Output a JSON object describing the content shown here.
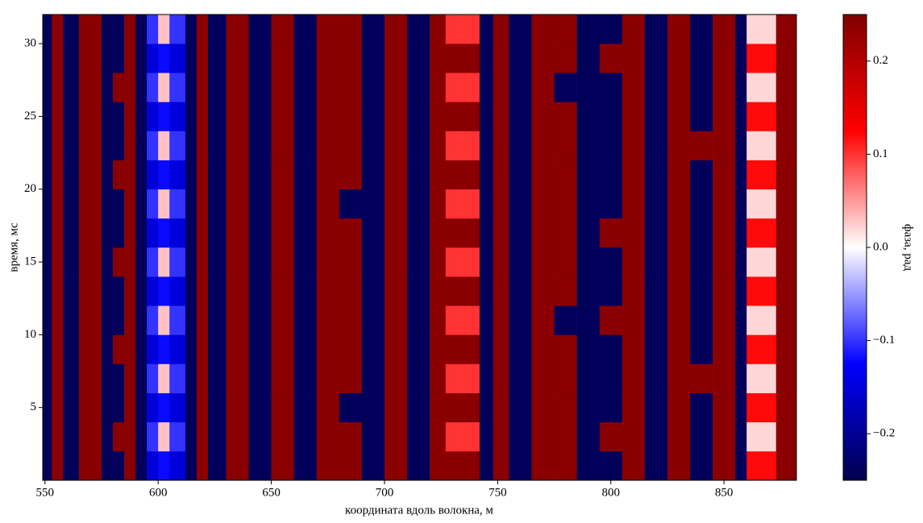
{
  "chart_data": {
    "type": "heatmap",
    "xlabel": "координата вдоль волокна, м",
    "ylabel": "время, мс",
    "colorbar_label": "фаза, рад",
    "colormap": [
      "#00004d",
      "#0000ff",
      "#ffffff",
      "#ff0000",
      "#800000"
    ],
    "zlim": [
      -0.25,
      0.25
    ],
    "zticks": [
      {
        "value": -0.2,
        "label": "−0.2"
      },
      {
        "value": -0.1,
        "label": "−0.1"
      },
      {
        "value": 0,
        "label": "0.0"
      },
      0.1,
      0.2
    ],
    "xlim": [
      549,
      882
    ],
    "xticks": [
      550,
      600,
      650,
      700,
      750,
      800,
      850
    ],
    "ylim": [
      0,
      32
    ],
    "yticks": [
      5,
      10,
      15,
      20,
      25,
      30
    ],
    "xbins": [
      549,
      553,
      558,
      565,
      570,
      575,
      580,
      585,
      590,
      595,
      600,
      605,
      612,
      617,
      622,
      630,
      640,
      650,
      660,
      670,
      680,
      690,
      700,
      710,
      720,
      727,
      733,
      742,
      748,
      755,
      765,
      775,
      785,
      795,
      805,
      815,
      825,
      835,
      845,
      855,
      860,
      866,
      873,
      882
    ],
    "ybins": [
      0,
      2,
      4,
      6,
      8,
      10,
      12,
      14,
      16,
      18,
      20,
      22,
      24,
      26,
      28,
      30,
      32
    ],
    "z": [
      [
        -0.24,
        0.24,
        -0.24,
        0.24,
        0.24,
        -0.24,
        -0.24,
        0.24,
        -0.24,
        -0.15,
        -0.12,
        -0.15,
        -0.24,
        0.24,
        -0.24,
        0.24,
        -0.24,
        0.24,
        -0.24,
        0.24,
        0.24,
        -0.24,
        0.24,
        -0.24,
        0.24,
        0.24,
        0.24,
        -0.24,
        0.24,
        -0.24,
        0.24,
        0.24,
        -0.24,
        -0.24,
        0.24,
        -0.24,
        0.24,
        -0.24,
        0.24,
        -0.24,
        0.12,
        0.12,
        0.24
      ],
      [
        -0.24,
        0.24,
        -0.24,
        0.24,
        0.24,
        -0.24,
        0.24,
        0.24,
        -0.24,
        -0.1,
        0.03,
        -0.1,
        -0.24,
        0.24,
        -0.24,
        0.24,
        -0.24,
        0.24,
        -0.24,
        0.24,
        0.24,
        -0.24,
        0.24,
        -0.24,
        0.24,
        0.1,
        0.1,
        -0.24,
        0.24,
        -0.24,
        0.24,
        0.24,
        -0.24,
        0.24,
        0.24,
        -0.24,
        0.24,
        -0.24,
        0.24,
        -0.24,
        0.02,
        0.02,
        0.24
      ],
      [
        -0.24,
        0.24,
        -0.24,
        0.24,
        0.24,
        -0.24,
        -0.24,
        0.24,
        -0.24,
        -0.15,
        -0.12,
        -0.15,
        -0.24,
        0.24,
        -0.24,
        0.24,
        -0.24,
        0.24,
        -0.24,
        0.24,
        -0.24,
        -0.24,
        0.24,
        -0.24,
        0.24,
        0.24,
        0.24,
        -0.24,
        0.24,
        -0.24,
        0.24,
        0.24,
        -0.24,
        -0.24,
        0.24,
        -0.24,
        0.24,
        -0.24,
        0.24,
        -0.24,
        0.12,
        0.12,
        0.24
      ],
      [
        -0.24,
        0.24,
        -0.24,
        0.24,
        0.24,
        -0.24,
        -0.24,
        0.24,
        -0.24,
        -0.1,
        0.03,
        -0.1,
        -0.24,
        0.24,
        -0.24,
        0.24,
        -0.24,
        0.24,
        -0.24,
        0.24,
        0.24,
        -0.24,
        0.24,
        -0.24,
        0.24,
        0.1,
        0.1,
        -0.24,
        0.24,
        -0.24,
        0.24,
        0.24,
        -0.24,
        -0.24,
        0.24,
        -0.24,
        0.24,
        0.24,
        0.24,
        -0.24,
        0.02,
        0.02,
        0.24
      ],
      [
        -0.24,
        0.24,
        -0.24,
        0.24,
        0.24,
        -0.24,
        0.24,
        0.24,
        -0.24,
        -0.15,
        -0.12,
        -0.15,
        -0.24,
        0.24,
        -0.24,
        0.24,
        -0.24,
        0.24,
        -0.24,
        0.24,
        0.24,
        -0.24,
        0.24,
        -0.24,
        0.24,
        0.24,
        0.24,
        -0.24,
        0.24,
        -0.24,
        0.24,
        0.24,
        -0.24,
        -0.24,
        0.24,
        -0.24,
        0.24,
        -0.24,
        0.24,
        -0.24,
        0.12,
        0.12,
        0.24
      ],
      [
        -0.24,
        0.24,
        -0.24,
        0.24,
        0.24,
        -0.24,
        -0.24,
        0.24,
        -0.24,
        -0.1,
        0.03,
        -0.1,
        -0.24,
        0.24,
        -0.24,
        0.24,
        -0.24,
        0.24,
        -0.24,
        0.24,
        0.24,
        -0.24,
        0.24,
        -0.24,
        0.24,
        0.1,
        0.1,
        -0.24,
        0.24,
        -0.24,
        0.24,
        -0.24,
        -0.24,
        0.24,
        0.24,
        -0.24,
        0.24,
        -0.24,
        0.24,
        -0.24,
        0.02,
        0.02,
        0.24
      ],
      [
        -0.24,
        0.24,
        -0.24,
        0.24,
        0.24,
        -0.24,
        -0.24,
        0.24,
        -0.24,
        -0.15,
        -0.12,
        -0.15,
        -0.24,
        0.24,
        -0.24,
        0.24,
        -0.24,
        0.24,
        -0.24,
        0.24,
        0.24,
        -0.24,
        0.24,
        -0.24,
        0.24,
        0.24,
        0.24,
        -0.24,
        0.24,
        -0.24,
        0.24,
        0.24,
        -0.24,
        -0.24,
        0.24,
        -0.24,
        0.24,
        -0.24,
        0.24,
        -0.24,
        0.12,
        0.12,
        0.24
      ],
      [
        -0.24,
        0.24,
        -0.24,
        0.24,
        0.24,
        -0.24,
        0.24,
        0.24,
        -0.24,
        -0.1,
        0.03,
        -0.1,
        -0.24,
        0.24,
        -0.24,
        0.24,
        -0.24,
        0.24,
        -0.24,
        0.24,
        0.24,
        -0.24,
        0.24,
        -0.24,
        0.24,
        0.1,
        0.1,
        -0.24,
        0.24,
        -0.24,
        0.24,
        0.24,
        -0.24,
        -0.24,
        0.24,
        -0.24,
        0.24,
        -0.24,
        0.24,
        -0.24,
        0.02,
        0.02,
        0.24
      ],
      [
        -0.24,
        0.24,
        -0.24,
        0.24,
        0.24,
        -0.24,
        -0.24,
        0.24,
        -0.24,
        -0.15,
        -0.12,
        -0.15,
        -0.24,
        0.24,
        -0.24,
        0.24,
        -0.24,
        0.24,
        -0.24,
        0.24,
        0.24,
        -0.24,
        0.24,
        -0.24,
        0.24,
        0.24,
        0.24,
        -0.24,
        0.24,
        -0.24,
        0.24,
        0.24,
        -0.24,
        0.24,
        0.24,
        -0.24,
        0.24,
        -0.24,
        0.24,
        -0.24,
        0.12,
        0.12,
        0.24
      ],
      [
        -0.24,
        0.24,
        -0.24,
        0.24,
        0.24,
        -0.24,
        -0.24,
        0.24,
        -0.24,
        -0.1,
        0.03,
        -0.1,
        -0.24,
        0.24,
        -0.24,
        0.24,
        -0.24,
        0.24,
        -0.24,
        0.24,
        -0.24,
        -0.24,
        0.24,
        -0.24,
        0.24,
        0.1,
        0.1,
        -0.24,
        0.24,
        -0.24,
        0.24,
        0.24,
        -0.24,
        -0.24,
        0.24,
        -0.24,
        0.24,
        -0.24,
        0.24,
        -0.24,
        0.02,
        0.02,
        0.24
      ],
      [
        -0.24,
        0.24,
        -0.24,
        0.24,
        0.24,
        -0.24,
        0.24,
        0.24,
        -0.24,
        -0.15,
        -0.12,
        -0.15,
        -0.24,
        0.24,
        -0.24,
        0.24,
        -0.24,
        0.24,
        -0.24,
        0.24,
        0.24,
        -0.24,
        0.24,
        -0.24,
        0.24,
        0.24,
        0.24,
        -0.24,
        0.24,
        -0.24,
        0.24,
        0.24,
        -0.24,
        -0.24,
        0.24,
        -0.24,
        0.24,
        -0.24,
        0.24,
        -0.24,
        0.12,
        0.12,
        0.24
      ],
      [
        -0.24,
        0.24,
        -0.24,
        0.24,
        0.24,
        -0.24,
        -0.24,
        0.24,
        -0.24,
        -0.1,
        0.03,
        -0.1,
        -0.24,
        0.24,
        -0.24,
        0.24,
        -0.24,
        0.24,
        -0.24,
        0.24,
        0.24,
        -0.24,
        0.24,
        -0.24,
        0.24,
        0.1,
        0.1,
        -0.24,
        0.24,
        -0.24,
        0.24,
        0.24,
        -0.24,
        -0.24,
        0.24,
        -0.24,
        0.24,
        0.24,
        0.24,
        -0.24,
        0.02,
        0.02,
        0.24
      ],
      [
        -0.24,
        0.24,
        -0.24,
        0.24,
        0.24,
        -0.24,
        -0.24,
        0.24,
        -0.24,
        -0.15,
        -0.12,
        -0.15,
        -0.24,
        0.24,
        -0.24,
        0.24,
        -0.24,
        0.24,
        -0.24,
        0.24,
        0.24,
        -0.24,
        0.24,
        -0.24,
        0.24,
        0.24,
        0.24,
        -0.24,
        0.24,
        -0.24,
        0.24,
        0.24,
        -0.24,
        -0.24,
        0.24,
        -0.24,
        0.24,
        -0.24,
        0.24,
        -0.24,
        0.12,
        0.12,
        0.24
      ],
      [
        -0.24,
        0.24,
        -0.24,
        0.24,
        0.24,
        -0.24,
        0.24,
        0.24,
        -0.24,
        -0.1,
        0.03,
        -0.1,
        -0.24,
        0.24,
        -0.24,
        0.24,
        -0.24,
        0.24,
        -0.24,
        0.24,
        0.24,
        -0.24,
        0.24,
        -0.24,
        0.24,
        0.1,
        0.1,
        -0.24,
        0.24,
        -0.24,
        0.24,
        -0.24,
        -0.24,
        -0.24,
        0.24,
        -0.24,
        0.24,
        -0.24,
        0.24,
        -0.24,
        0.02,
        0.02,
        0.24
      ],
      [
        -0.24,
        0.24,
        -0.24,
        0.24,
        0.24,
        -0.24,
        -0.24,
        0.24,
        -0.24,
        -0.15,
        -0.12,
        -0.15,
        -0.24,
        0.24,
        -0.24,
        0.24,
        -0.24,
        0.24,
        -0.24,
        0.24,
        0.24,
        -0.24,
        0.24,
        -0.24,
        0.24,
        0.24,
        0.24,
        -0.24,
        0.24,
        -0.24,
        0.24,
        0.24,
        -0.24,
        0.24,
        0.24,
        -0.24,
        0.24,
        -0.24,
        0.24,
        -0.24,
        0.12,
        0.12,
        0.24
      ],
      [
        -0.24,
        0.24,
        -0.24,
        0.24,
        0.24,
        -0.24,
        -0.24,
        0.24,
        -0.24,
        -0.1,
        0.03,
        -0.1,
        -0.24,
        0.24,
        -0.24,
        0.24,
        -0.24,
        0.24,
        -0.24,
        0.24,
        0.24,
        -0.24,
        0.24,
        -0.24,
        0.24,
        0.1,
        0.1,
        -0.24,
        0.24,
        -0.24,
        0.24,
        0.24,
        -0.24,
        -0.24,
        0.24,
        -0.24,
        0.24,
        -0.24,
        0.24,
        -0.24,
        0.02,
        0.02,
        0.24
      ]
    ]
  }
}
